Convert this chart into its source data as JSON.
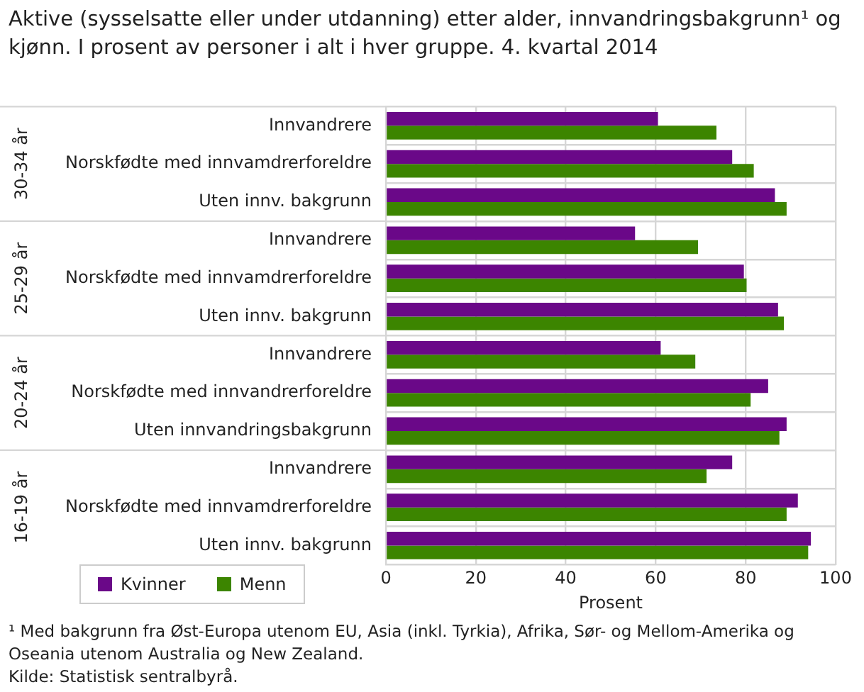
{
  "chart_data": {
    "type": "bar",
    "orientation": "horizontal",
    "title": "Aktive (sysselsatte eller under utdanning) etter alder, innvandringsbakgrunn¹ og kjønn. I prosent av personer i alt i hver gruppe. 4. kvartal 2014",
    "xlabel": "Prosent",
    "categories": [
      "Innvandrere",
      "Norskfødte med innvamdrerforeldre",
      "Uten innv. bakgrunn",
      "Innvandrere",
      "Norskfødte med innvamdrerforeldre",
      "Uten innv. bakgrunn",
      "Innvandrere",
      "Norskfødte med innvandrerforeldre",
      "Uten innvandringsbakgrunn",
      "Innvandrere",
      "Norskfødte med innvamdrerforeldre",
      "Uten innv. bakgrunn"
    ],
    "series": [
      {
        "name": "Kvinner",
        "color": "#6a0888",
        "values": [
          60.5,
          77.0,
          86.5,
          55.4,
          79.6,
          87.2,
          61.1,
          85.0,
          89.1,
          77.0,
          91.6,
          94.5
        ]
      },
      {
        "name": "Menn",
        "color": "#3c8500",
        "values": [
          73.5,
          81.8,
          89.1,
          69.4,
          80.2,
          88.5,
          68.8,
          81.1,
          87.5,
          71.3,
          89.1,
          93.9
        ]
      }
    ],
    "xlim": [
      0,
      100
    ],
    "xticks": [
      0,
      20,
      40,
      60,
      80,
      100
    ],
    "grid": true,
    "legend": "bottom left",
    "annotations": [
      "30-34 år",
      "25-29 år",
      "20-24 år",
      "16-19 år",
      "¹ Med bakgrunn fra Øst-Europa utenom EU, Asia (inkl. Tyrkia), Afrika, Sør- og Mellom-Amerika og Oseania utenom Australia og New Zealand.",
      "Kilde: Statistisk sentralbyrå."
    ]
  }
}
